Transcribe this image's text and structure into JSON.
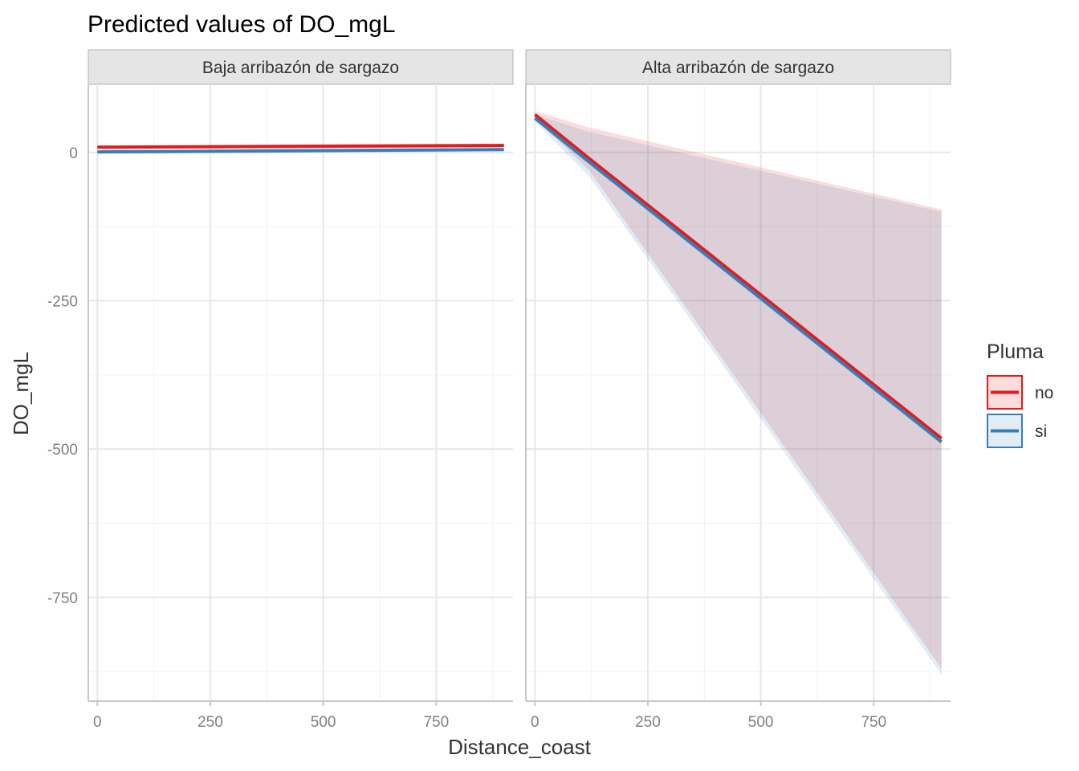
{
  "chart_data": {
    "type": "line",
    "title": "Predicted values of DO_mgL",
    "xlabel": "Distance_coast",
    "ylabel": "DO_mgL",
    "xlim": [
      -20,
      920
    ],
    "ylim": [
      -925,
      115
    ],
    "x_ticks": [
      0,
      250,
      500,
      750
    ],
    "x_tick_labels": [
      "0",
      "250",
      "500",
      "750"
    ],
    "y_ticks": [
      0,
      -250,
      -500,
      -750
    ],
    "y_tick_labels": [
      "0",
      "-250",
      "-500",
      "-750"
    ],
    "grid": true,
    "legend": {
      "title": "Pluma",
      "position": "right",
      "entries": [
        {
          "label": "no",
          "color": "#E41A1C"
        },
        {
          "label": "si",
          "color": "#377EB8"
        }
      ]
    },
    "panels": [
      {
        "label": "Baja arribazón de sargazo",
        "series": [
          {
            "name": "no",
            "color": "#E41A1C",
            "x": [
              0,
              900
            ],
            "y": [
              9,
              12
            ],
            "lower": [
              6,
              9
            ],
            "upper": [
              12,
              15
            ]
          },
          {
            "name": "si",
            "color": "#377EB8",
            "x": [
              0,
              900
            ],
            "y": [
              1,
              5
            ],
            "lower": [
              -2,
              2
            ],
            "upper": [
              4,
              8
            ]
          }
        ]
      },
      {
        "label": "Alta arribazón de sargazo",
        "series": [
          {
            "name": "no",
            "color": "#E41A1C",
            "x": [
              0,
              120,
              900
            ],
            "y": [
              64,
              -10,
              -482
            ],
            "lower": [
              58,
              -30,
              -870
            ],
            "upper": [
              70,
              42,
              -96
            ]
          },
          {
            "name": "si",
            "color": "#377EB8",
            "x": [
              0,
              120,
              900
            ],
            "y": [
              58,
              -16,
              -488
            ],
            "lower": [
              52,
              -40,
              -880
            ],
            "upper": [
              64,
              35,
              -100
            ]
          }
        ]
      }
    ]
  }
}
